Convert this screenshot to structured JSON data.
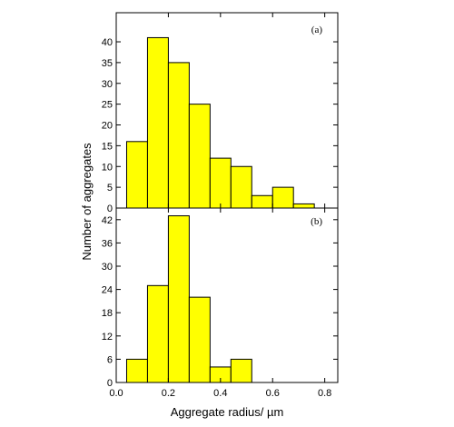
{
  "chart_data": [
    {
      "type": "bar",
      "panel_label": "(a)",
      "bin_edges": [
        0.04,
        0.12,
        0.2,
        0.28,
        0.36,
        0.44,
        0.52,
        0.6,
        0.68,
        0.76
      ],
      "values": [
        16,
        41,
        35,
        25,
        12,
        10,
        3,
        5,
        1
      ],
      "xlim": [
        0.0,
        0.85
      ],
      "ylim": [
        0,
        47
      ],
      "yticks": [
        0,
        5,
        10,
        15,
        20,
        25,
        30,
        35,
        40
      ],
      "bar_color": "#ffff00"
    },
    {
      "type": "bar",
      "panel_label": "(b)",
      "bin_edges": [
        0.04,
        0.12,
        0.2,
        0.28,
        0.36,
        0.44,
        0.52,
        0.6
      ],
      "values": [
        6,
        25,
        43,
        22,
        4,
        6,
        0
      ],
      "xlim": [
        0.0,
        0.85
      ],
      "ylim": [
        0,
        45
      ],
      "yticks": [
        0,
        6,
        12,
        18,
        24,
        30,
        36,
        42
      ],
      "bar_color": "#ffff00"
    }
  ],
  "xticks": [
    "0.0",
    "0.2",
    "0.4",
    "0.6",
    "0.8"
  ],
  "xtick_values": [
    0.0,
    0.2,
    0.4,
    0.6,
    0.8
  ],
  "xlabel": "Aggregate radius/ µm",
  "ylabel": "Number of aggregates"
}
